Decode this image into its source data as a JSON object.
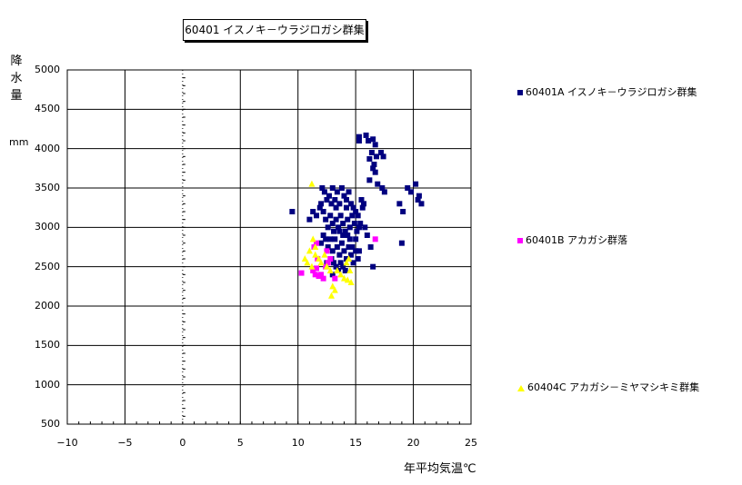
{
  "chart_data": {
    "type": "scatter",
    "title": "60401 イスノキ－ウラジロガシ群集",
    "ylabel": "降水量",
    "yunit": "mm",
    "xlabel": "年平均気温℃",
    "xlim": [
      -10,
      25
    ],
    "ylim": [
      500,
      5000
    ],
    "xticks": [
      -10,
      -5,
      0,
      5,
      10,
      15,
      20,
      25
    ],
    "yticks": [
      500,
      1000,
      1500,
      2000,
      2500,
      3000,
      3500,
      4000,
      4500,
      5000
    ],
    "grid": true,
    "legend_position": "right",
    "series": [
      {
        "name": "60401A イスノキ－ウラジロガシ群集",
        "marker": "square",
        "color": "#000080",
        "points": [
          [
            15.3,
            4150
          ],
          [
            15.3,
            4100
          ],
          [
            15.9,
            4170
          ],
          [
            16.1,
            4100
          ],
          [
            16.5,
            4120
          ],
          [
            16.7,
            4050
          ],
          [
            16.4,
            3950
          ],
          [
            16.2,
            3870
          ],
          [
            16.6,
            3800
          ],
          [
            16.8,
            3900
          ],
          [
            17.2,
            3950
          ],
          [
            17.4,
            3900
          ],
          [
            16.5,
            3750
          ],
          [
            16.7,
            3700
          ],
          [
            16.2,
            3600
          ],
          [
            16.9,
            3550
          ],
          [
            17.3,
            3500
          ],
          [
            17.5,
            3450
          ],
          [
            18.8,
            3300
          ],
          [
            19.1,
            3200
          ],
          [
            19.5,
            3500
          ],
          [
            19.8,
            3450
          ],
          [
            20.2,
            3550
          ],
          [
            20.5,
            3400
          ],
          [
            20.7,
            3300
          ],
          [
            20.4,
            3350
          ],
          [
            19.0,
            2800
          ],
          [
            16.3,
            2750
          ],
          [
            16.0,
            2900
          ],
          [
            16.5,
            2500
          ],
          [
            9.5,
            3200
          ],
          [
            11.0,
            3100
          ],
          [
            11.3,
            3200
          ],
          [
            11.6,
            3150
          ],
          [
            11.9,
            3250
          ],
          [
            12.1,
            3500
          ],
          [
            12.3,
            3450
          ],
          [
            12.0,
            3300
          ],
          [
            12.5,
            3350
          ],
          [
            12.7,
            3400
          ],
          [
            13.0,
            3500
          ],
          [
            13.2,
            3350
          ],
          [
            13.4,
            3450
          ],
          [
            13.6,
            3300
          ],
          [
            13.8,
            3500
          ],
          [
            14.0,
            3400
          ],
          [
            14.2,
            3350
          ],
          [
            14.4,
            3450
          ],
          [
            14.6,
            3300
          ],
          [
            14.8,
            3250
          ],
          [
            15.0,
            3200
          ],
          [
            15.2,
            3150
          ],
          [
            15.4,
            3050
          ],
          [
            15.5,
            3350
          ],
          [
            15.6,
            3250
          ],
          [
            15.7,
            3300
          ],
          [
            15.8,
            3000
          ],
          [
            12.2,
            3200
          ],
          [
            12.4,
            3100
          ],
          [
            12.6,
            3000
          ],
          [
            12.8,
            3150
          ],
          [
            13.0,
            3050
          ],
          [
            13.1,
            2950
          ],
          [
            13.3,
            3100
          ],
          [
            13.5,
            3000
          ],
          [
            13.7,
            3150
          ],
          [
            13.9,
            3050
          ],
          [
            14.1,
            2950
          ],
          [
            14.3,
            3100
          ],
          [
            14.5,
            3000
          ],
          [
            14.7,
            3150
          ],
          [
            14.9,
            3050
          ],
          [
            15.1,
            2950
          ],
          [
            15.3,
            3000
          ],
          [
            12.0,
            2800
          ],
          [
            12.2,
            2900
          ],
          [
            12.4,
            2850
          ],
          [
            12.6,
            2750
          ],
          [
            12.8,
            2850
          ],
          [
            13.0,
            2700
          ],
          [
            13.2,
            2850
          ],
          [
            13.4,
            2750
          ],
          [
            13.6,
            2650
          ],
          [
            13.8,
            2800
          ],
          [
            14.0,
            2700
          ],
          [
            14.2,
            2600
          ],
          [
            14.4,
            2750
          ],
          [
            14.6,
            2650
          ],
          [
            14.8,
            2550
          ],
          [
            15.0,
            2700
          ],
          [
            15.2,
            2600
          ],
          [
            12.9,
            2600
          ],
          [
            13.1,
            2550
          ],
          [
            13.3,
            2500
          ],
          [
            13.5,
            2450
          ],
          [
            13.7,
            2550
          ],
          [
            13.9,
            2500
          ],
          [
            14.1,
            2450
          ],
          [
            12.5,
            2550
          ],
          [
            13.0,
            2400
          ],
          [
            14.3,
            2900
          ],
          [
            14.5,
            2850
          ],
          [
            13.9,
            2900
          ],
          [
            13.6,
            2950
          ],
          [
            14.2,
            3250
          ],
          [
            13.3,
            3250
          ],
          [
            12.9,
            3300
          ],
          [
            14.7,
            2750
          ],
          [
            15.0,
            2850
          ],
          [
            15.3,
            2700
          ]
        ]
      },
      {
        "name": "60401B アカガシ群落",
        "marker": "square",
        "color": "#FF00FF",
        "points": [
          [
            10.3,
            2420
          ],
          [
            11.3,
            2450
          ],
          [
            11.5,
            2400
          ],
          [
            11.6,
            2480
          ],
          [
            11.8,
            2380
          ],
          [
            12.0,
            2400
          ],
          [
            12.2,
            2350
          ],
          [
            12.4,
            2500
          ],
          [
            12.6,
            2550
          ],
          [
            12.8,
            2600
          ],
          [
            11.4,
            2750
          ],
          [
            11.6,
            2800
          ],
          [
            12.5,
            2700
          ],
          [
            13.2,
            2350
          ],
          [
            16.7,
            2850
          ],
          [
            11.7,
            2600
          ]
        ]
      },
      {
        "name": "60404C アカガシ－ミヤマシキミ群集",
        "marker": "triangle",
        "color": "#FFFF00",
        "points": [
          [
            11.2,
            3550
          ],
          [
            11.3,
            2850
          ],
          [
            11.5,
            2750
          ],
          [
            11.0,
            2700
          ],
          [
            10.6,
            2600
          ],
          [
            10.8,
            2550
          ],
          [
            11.2,
            2500
          ],
          [
            11.5,
            2650
          ],
          [
            11.8,
            2600
          ],
          [
            12.0,
            2550
          ],
          [
            12.3,
            2650
          ],
          [
            12.5,
            2500
          ],
          [
            12.8,
            2450
          ],
          [
            13.0,
            2250
          ],
          [
            13.2,
            2200
          ],
          [
            12.9,
            2130
          ],
          [
            13.4,
            2450
          ],
          [
            13.7,
            2400
          ],
          [
            14.0,
            2350
          ],
          [
            14.3,
            2330
          ],
          [
            14.6,
            2300
          ],
          [
            14.5,
            2450
          ],
          [
            14.4,
            2600
          ],
          [
            14.2,
            2550
          ]
        ]
      }
    ]
  }
}
